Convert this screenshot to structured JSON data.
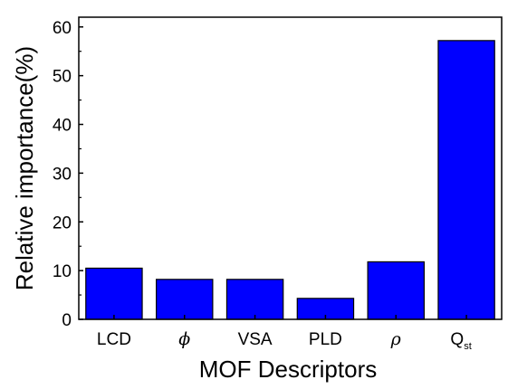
{
  "chart_data": {
    "type": "bar",
    "categories": [
      "LCD",
      "ϕ",
      "VSA",
      "PLD",
      "ρ",
      "Q"
    ],
    "category_subscripts": [
      "",
      "",
      "",
      "",
      "",
      "st"
    ],
    "values": [
      10.5,
      8.2,
      8.2,
      4.3,
      11.8,
      57.2
    ],
    "xlabel": "MOF Descriptors",
    "ylabel": "Relative importance(%)",
    "ylim": [
      0,
      62
    ],
    "yticks": [
      0,
      10,
      20,
      30,
      40,
      50,
      60
    ],
    "grid": false,
    "bar_color": "#0000ff"
  }
}
